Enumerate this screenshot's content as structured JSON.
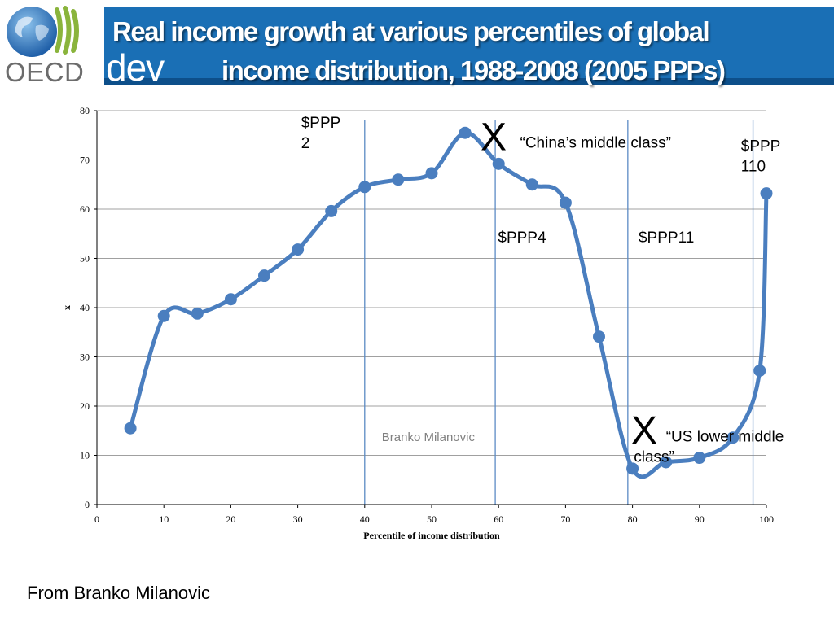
{
  "header": {
    "title_line1": "Real income growth at various percentiles of global",
    "title_line2": "income distribution, 1988-2008 (2005 PPPs)",
    "dev_text": "dev",
    "logo_text": "OECD"
  },
  "footer": {
    "credit": "From Branko Milanovic"
  },
  "colors": {
    "header_blue": "#1a6fb5",
    "series": "#4a7ebf",
    "vline": "#5b8ac4",
    "grid": "#a0a0a0"
  },
  "chart_data": {
    "type": "line",
    "xlabel": "Percentile of income distribution",
    "ylabel": "x",
    "xlim": [
      0,
      100
    ],
    "ylim": [
      0,
      80
    ],
    "xticks": [
      0,
      10,
      20,
      30,
      40,
      50,
      60,
      70,
      80,
      90,
      100
    ],
    "yticks": [
      0,
      10,
      20,
      30,
      40,
      50,
      60,
      70,
      80
    ],
    "grid": "horizontal",
    "series": [
      {
        "x": [
          5,
          10,
          15,
          20,
          25,
          30,
          35,
          40,
          45,
          50,
          55,
          60,
          65,
          70,
          75,
          80,
          85,
          90,
          95,
          99,
          100
        ],
        "y": [
          15.5,
          38.3,
          38.8,
          41.7,
          46.5,
          51.8,
          59.6,
          64.5,
          66,
          67.3,
          75.5,
          69.2,
          65,
          61.3,
          34.1,
          7.3,
          8.6,
          9.5,
          13.6,
          27.2,
          63.2
        ]
      }
    ],
    "vertical_lines": [
      40,
      59.5,
      79.3,
      98
    ],
    "annotations": [
      {
        "lines": [
          "$PPP",
          "2"
        ],
        "x": 30.5,
        "y": 76.5
      },
      {
        "lines": [
          "X"
        ],
        "x": 57.3,
        "y": 72,
        "big": true
      },
      {
        "lines": [
          "“China’s middle class”"
        ],
        "x": 63.2,
        "y": 72.5
      },
      {
        "lines": [
          "$PPP",
          "110"
        ],
        "x": 96.2,
        "y": 71.8
      },
      {
        "lines": [
          "$PPP4"
        ],
        "x": 59.9,
        "y": 53.2
      },
      {
        "lines": [
          "$PPP11"
        ],
        "x": 80.9,
        "y": 53.2
      },
      {
        "lines": [
          "X"
        ],
        "x": 79.8,
        "y": 12.4,
        "big": true
      },
      {
        "lines": [
          "“US lower middle",
          "class”"
        ],
        "x": 85,
        "y": 12.8,
        "x2": 80.2
      }
    ],
    "watermark": "Branko Milanovic"
  }
}
